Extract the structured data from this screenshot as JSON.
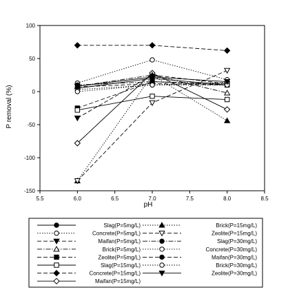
{
  "chart_data": {
    "type": "line",
    "xlabel": "pH",
    "ylabel": "P removal (%)",
    "xlim": [
      5.5,
      8.5
    ],
    "ylim": [
      -150,
      100
    ],
    "xticks": [
      5.5,
      6.0,
      6.5,
      7.0,
      7.5,
      8.0,
      8.5
    ],
    "yticks": [
      -150,
      -100,
      -50,
      0,
      50,
      100
    ],
    "x": [
      6.0,
      7.0,
      8.0
    ],
    "grid": false,
    "legend_position": "bottom",
    "series": [
      {
        "name": "Slag(P=5mg/L)",
        "values": [
          5,
          20,
          10
        ],
        "line": "solid",
        "marker": "circle-filled"
      },
      {
        "name": "Concrete(P=5mg/L)",
        "values": [
          13,
          48,
          18
        ],
        "line": "dotted",
        "marker": "circle-open"
      },
      {
        "name": "Maifan(P=5mg/L)",
        "values": [
          -40,
          25,
          12
        ],
        "line": "dashed",
        "marker": "triangle-down-filled"
      },
      {
        "name": "Brick(P=5mg/L)",
        "values": [
          8,
          25,
          -2
        ],
        "line": "dashdot",
        "marker": "triangle-up-open"
      },
      {
        "name": "Zeolite(P=5mg/L)",
        "values": [
          -25,
          15,
          10
        ],
        "line": "dashed",
        "marker": "square-filled"
      },
      {
        "name": "Slag(P=15mg/L)",
        "values": [
          -28,
          -7,
          -12
        ],
        "line": "solid",
        "marker": "square-open"
      },
      {
        "name": "Concrete(P=15mg/L)",
        "values": [
          70,
          70,
          62
        ],
        "line": "dashed",
        "marker": "diamond-filled"
      },
      {
        "name": "Maifan(P=15mg/L)",
        "values": [
          -78,
          28,
          -27
        ],
        "line": "solid",
        "marker": "diamond-open"
      },
      {
        "name": "Brick(P=15mg/L)",
        "values": [
          -135,
          25,
          -44
        ],
        "line": "dotted",
        "marker": "triangle-up-filled"
      },
      {
        "name": "Zeolite(P=15mg/L)",
        "values": [
          -135,
          -17,
          32
        ],
        "line": "dashed",
        "marker": "triangle-down-open"
      },
      {
        "name": "Slag(P=30mg/L)",
        "values": [
          10,
          15,
          12
        ],
        "line": "dashdot",
        "marker": "circle-filled"
      },
      {
        "name": "Concrete(P=30mg/L)",
        "values": [
          3,
          10,
          14
        ],
        "line": "dotted",
        "marker": "circle-open"
      },
      {
        "name": "Maifan(P=30mg/L)",
        "values": [
          7,
          12,
          10
        ],
        "line": "dashed",
        "marker": "circle-filled"
      },
      {
        "name": "Brick(P=30mg/L)",
        "values": [
          0,
          10,
          10
        ],
        "line": "dotted",
        "marker": "circle-open"
      },
      {
        "name": "Zeolite(P=30mg/L)",
        "values": [
          8,
          22,
          15
        ],
        "line": "solid",
        "marker": "triangle-down-filled"
      }
    ]
  }
}
